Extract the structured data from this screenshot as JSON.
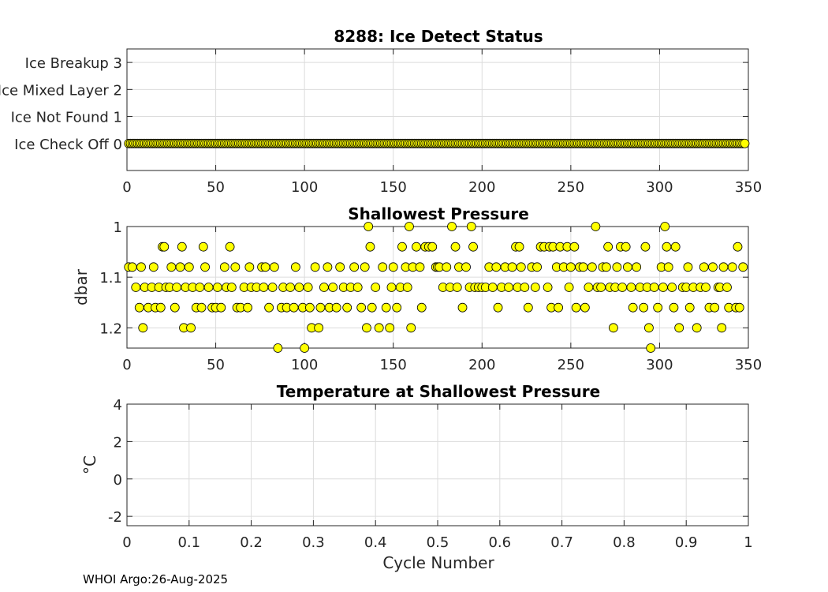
{
  "chart_data": [
    {
      "type": "scatter",
      "title": "8288: Ice Detect Status",
      "xlim": [
        0,
        350
      ],
      "xticks": [
        0,
        50,
        100,
        150,
        200,
        250,
        300,
        350
      ],
      "ylim": [
        -1,
        3.5
      ],
      "yticks": [
        0,
        1,
        2,
        3
      ],
      "ytick_labels": [
        "Ice Check Off 0",
        "Ice Not Found 1",
        "Ice Mixed Layer 2",
        "Ice Breakup 3"
      ],
      "ylabel": "",
      "marker_color": "#ffff00",
      "x_range": [
        1,
        348
      ],
      "y_constant": 0
    },
    {
      "type": "scatter",
      "title": "Shallowest Pressure",
      "xlim": [
        0,
        350
      ],
      "xticks": [
        0,
        50,
        100,
        150,
        200,
        250,
        300,
        350
      ],
      "ylim": [
        1.24,
        1.0
      ],
      "yticks": [
        1,
        1.1,
        1.2
      ],
      "ytick_labels": [
        "1",
        "1.1",
        "1.2"
      ],
      "ylabel": "dbar",
      "marker_color": "#ffff00",
      "points": [
        [
          1,
          1.08
        ],
        [
          3,
          1.08
        ],
        [
          5,
          1.12
        ],
        [
          7,
          1.16
        ],
        [
          8,
          1.08
        ],
        [
          9,
          1.2
        ],
        [
          10,
          1.12
        ],
        [
          12,
          1.16
        ],
        [
          14,
          1.12
        ],
        [
          15,
          1.08
        ],
        [
          16,
          1.16
        ],
        [
          18,
          1.12
        ],
        [
          19,
          1.16
        ],
        [
          20,
          1.04
        ],
        [
          21,
          1.04
        ],
        [
          22,
          1.12
        ],
        [
          24,
          1.12
        ],
        [
          25,
          1.08
        ],
        [
          27,
          1.16
        ],
        [
          28,
          1.12
        ],
        [
          30,
          1.08
        ],
        [
          31,
          1.04
        ],
        [
          32,
          1.2
        ],
        [
          33,
          1.12
        ],
        [
          35,
          1.08
        ],
        [
          36,
          1.2
        ],
        [
          37,
          1.12
        ],
        [
          39,
          1.16
        ],
        [
          41,
          1.12
        ],
        [
          42,
          1.16
        ],
        [
          43,
          1.04
        ],
        [
          44,
          1.08
        ],
        [
          46,
          1.12
        ],
        [
          48,
          1.16
        ],
        [
          50,
          1.16
        ],
        [
          51,
          1.12
        ],
        [
          53,
          1.16
        ],
        [
          55,
          1.08
        ],
        [
          56,
          1.12
        ],
        [
          58,
          1.04
        ],
        [
          59,
          1.12
        ],
        [
          61,
          1.08
        ],
        [
          62,
          1.16
        ],
        [
          64,
          1.16
        ],
        [
          66,
          1.12
        ],
        [
          68,
          1.16
        ],
        [
          69,
          1.08
        ],
        [
          70,
          1.12
        ],
        [
          73,
          1.12
        ],
        [
          76,
          1.08
        ],
        [
          77,
          1.12
        ],
        [
          78,
          1.08
        ],
        [
          80,
          1.16
        ],
        [
          82,
          1.12
        ],
        [
          83,
          1.08
        ],
        [
          85,
          1.24
        ],
        [
          87,
          1.16
        ],
        [
          88,
          1.12
        ],
        [
          90,
          1.16
        ],
        [
          92,
          1.12
        ],
        [
          94,
          1.16
        ],
        [
          95,
          1.08
        ],
        [
          97,
          1.12
        ],
        [
          99,
          1.16
        ],
        [
          100,
          1.24
        ],
        [
          102,
          1.12
        ],
        [
          103,
          1.16
        ],
        [
          104,
          1.2
        ],
        [
          106,
          1.08
        ],
        [
          108,
          1.2
        ],
        [
          109,
          1.16
        ],
        [
          111,
          1.12
        ],
        [
          113,
          1.08
        ],
        [
          114,
          1.16
        ],
        [
          116,
          1.12
        ],
        [
          118,
          1.16
        ],
        [
          120,
          1.08
        ],
        [
          122,
          1.12
        ],
        [
          124,
          1.16
        ],
        [
          126,
          1.12
        ],
        [
          128,
          1.08
        ],
        [
          130,
          1.12
        ],
        [
          132,
          1.16
        ],
        [
          134,
          1.08
        ],
        [
          135,
          1.2
        ],
        [
          136,
          1.0
        ],
        [
          137,
          1.04
        ],
        [
          138,
          1.16
        ],
        [
          140,
          1.12
        ],
        [
          142,
          1.2
        ],
        [
          144,
          1.08
        ],
        [
          146,
          1.16
        ],
        [
          148,
          1.2
        ],
        [
          149,
          1.12
        ],
        [
          150,
          1.08
        ],
        [
          152,
          1.16
        ],
        [
          154,
          1.12
        ],
        [
          155,
          1.04
        ],
        [
          157,
          1.08
        ],
        [
          158,
          1.12
        ],
        [
          159,
          1.0
        ],
        [
          160,
          1.2
        ],
        [
          161,
          1.08
        ],
        [
          163,
          1.04
        ],
        [
          165,
          1.08
        ],
        [
          166,
          1.16
        ],
        [
          168,
          1.04
        ],
        [
          170,
          1.04
        ],
        [
          172,
          1.04
        ],
        [
          174,
          1.08
        ],
        [
          175,
          1.08
        ],
        [
          176,
          1.08
        ],
        [
          178,
          1.12
        ],
        [
          180,
          1.08
        ],
        [
          182,
          1.12
        ],
        [
          183,
          1.0
        ],
        [
          185,
          1.04
        ],
        [
          186,
          1.12
        ],
        [
          187,
          1.08
        ],
        [
          189,
          1.16
        ],
        [
          191,
          1.08
        ],
        [
          193,
          1.12
        ],
        [
          194,
          1.0
        ],
        [
          195,
          1.04
        ],
        [
          196,
          1.12
        ],
        [
          198,
          1.12
        ],
        [
          200,
          1.12
        ],
        [
          202,
          1.12
        ],
        [
          204,
          1.08
        ],
        [
          206,
          1.12
        ],
        [
          208,
          1.08
        ],
        [
          209,
          1.16
        ],
        [
          211,
          1.12
        ],
        [
          213,
          1.08
        ],
        [
          215,
          1.12
        ],
        [
          217,
          1.08
        ],
        [
          219,
          1.04
        ],
        [
          220,
          1.12
        ],
        [
          221,
          1.04
        ],
        [
          222,
          1.08
        ],
        [
          224,
          1.12
        ],
        [
          226,
          1.16
        ],
        [
          228,
          1.08
        ],
        [
          230,
          1.12
        ],
        [
          231,
          1.08
        ],
        [
          233,
          1.04
        ],
        [
          235,
          1.04
        ],
        [
          237,
          1.12
        ],
        [
          238,
          1.04
        ],
        [
          239,
          1.16
        ],
        [
          240,
          1.04
        ],
        [
          242,
          1.08
        ],
        [
          243,
          1.16
        ],
        [
          244,
          1.04
        ],
        [
          246,
          1.08
        ],
        [
          248,
          1.04
        ],
        [
          249,
          1.12
        ],
        [
          250,
          1.08
        ],
        [
          252,
          1.04
        ],
        [
          253,
          1.16
        ],
        [
          255,
          1.08
        ],
        [
          257,
          1.08
        ],
        [
          258,
          1.16
        ],
        [
          260,
          1.12
        ],
        [
          262,
          1.08
        ],
        [
          264,
          1.0
        ],
        [
          265,
          1.12
        ],
        [
          267,
          1.12
        ],
        [
          268,
          1.08
        ],
        [
          270,
          1.08
        ],
        [
          271,
          1.04
        ],
        [
          272,
          1.12
        ],
        [
          274,
          1.2
        ],
        [
          275,
          1.12
        ],
        [
          276,
          1.08
        ],
        [
          278,
          1.04
        ],
        [
          279,
          1.12
        ],
        [
          281,
          1.04
        ],
        [
          282,
          1.08
        ],
        [
          284,
          1.12
        ],
        [
          285,
          1.16
        ],
        [
          287,
          1.08
        ],
        [
          289,
          1.12
        ],
        [
          291,
          1.16
        ],
        [
          292,
          1.04
        ],
        [
          293,
          1.12
        ],
        [
          294,
          1.2
        ],
        [
          295,
          1.24
        ],
        [
          297,
          1.12
        ],
        [
          299,
          1.16
        ],
        [
          301,
          1.08
        ],
        [
          302,
          1.12
        ],
        [
          303,
          1.0
        ],
        [
          304,
          1.04
        ],
        [
          305,
          1.08
        ],
        [
          307,
          1.12
        ],
        [
          308,
          1.16
        ],
        [
          309,
          1.04
        ],
        [
          311,
          1.2
        ],
        [
          313,
          1.12
        ],
        [
          315,
          1.12
        ],
        [
          316,
          1.08
        ],
        [
          317,
          1.16
        ],
        [
          319,
          1.12
        ],
        [
          321,
          1.2
        ],
        [
          323,
          1.12
        ],
        [
          325,
          1.08
        ],
        [
          326,
          1.12
        ],
        [
          328,
          1.16
        ],
        [
          330,
          1.08
        ],
        [
          331,
          1.16
        ],
        [
          333,
          1.12
        ],
        [
          334,
          1.12
        ],
        [
          335,
          1.2
        ],
        [
          336,
          1.08
        ],
        [
          338,
          1.12
        ],
        [
          339,
          1.16
        ],
        [
          341,
          1.08
        ],
        [
          343,
          1.16
        ],
        [
          344,
          1.04
        ],
        [
          345,
          1.16
        ],
        [
          347,
          1.08
        ]
      ]
    },
    {
      "type": "scatter",
      "title": "Temperature at Shallowest Pressure",
      "xlim": [
        0,
        1
      ],
      "xticks": [
        0,
        0.1,
        0.2,
        0.3,
        0.4,
        0.5,
        0.6,
        0.7,
        0.8,
        0.9,
        1
      ],
      "xtick_labels": [
        "0",
        "0.1",
        "0.2",
        "0.3",
        "0.4",
        "0.5",
        "0.6",
        "0.7",
        "0.8",
        "0.9",
        "1"
      ],
      "ylim": [
        -2.5,
        4
      ],
      "yticks": [
        -2,
        0,
        2,
        4
      ],
      "ytick_labels": [
        "-2",
        "0",
        "2",
        "4"
      ],
      "xlabel": "Cycle Number",
      "ylabel": "°C",
      "points": []
    }
  ],
  "footer": "WHOI Argo:26-Aug-2025"
}
